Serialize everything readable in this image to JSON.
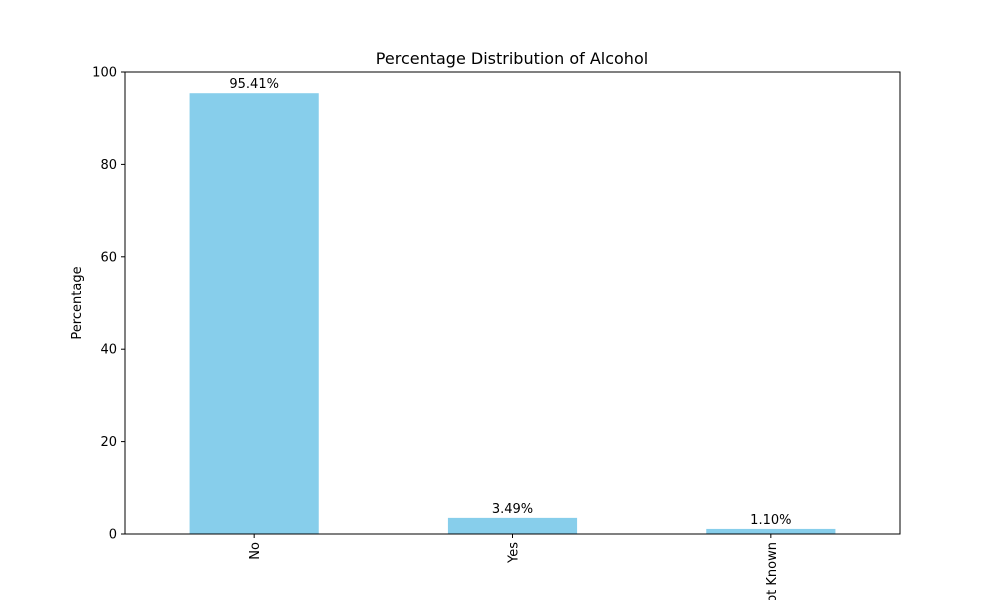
{
  "chart_data": {
    "type": "bar",
    "title": "Percentage Distribution of Alcohol",
    "xlabel": "",
    "ylabel": "Percentage",
    "categories": [
      "No",
      "Yes",
      "Not Known"
    ],
    "values": [
      95.41,
      3.49,
      1.1
    ],
    "data_labels": [
      "95.41%",
      "3.49%",
      "1.10%"
    ],
    "ylim": [
      0,
      100
    ],
    "yticks": [
      0,
      20,
      40,
      60,
      80,
      100
    ],
    "ytick_labels": [
      "0",
      "20",
      "40",
      "60",
      "80",
      "100"
    ],
    "grid": false,
    "legend": "none",
    "bar_color": "#87ceeb",
    "axis_color": "#000000"
  }
}
